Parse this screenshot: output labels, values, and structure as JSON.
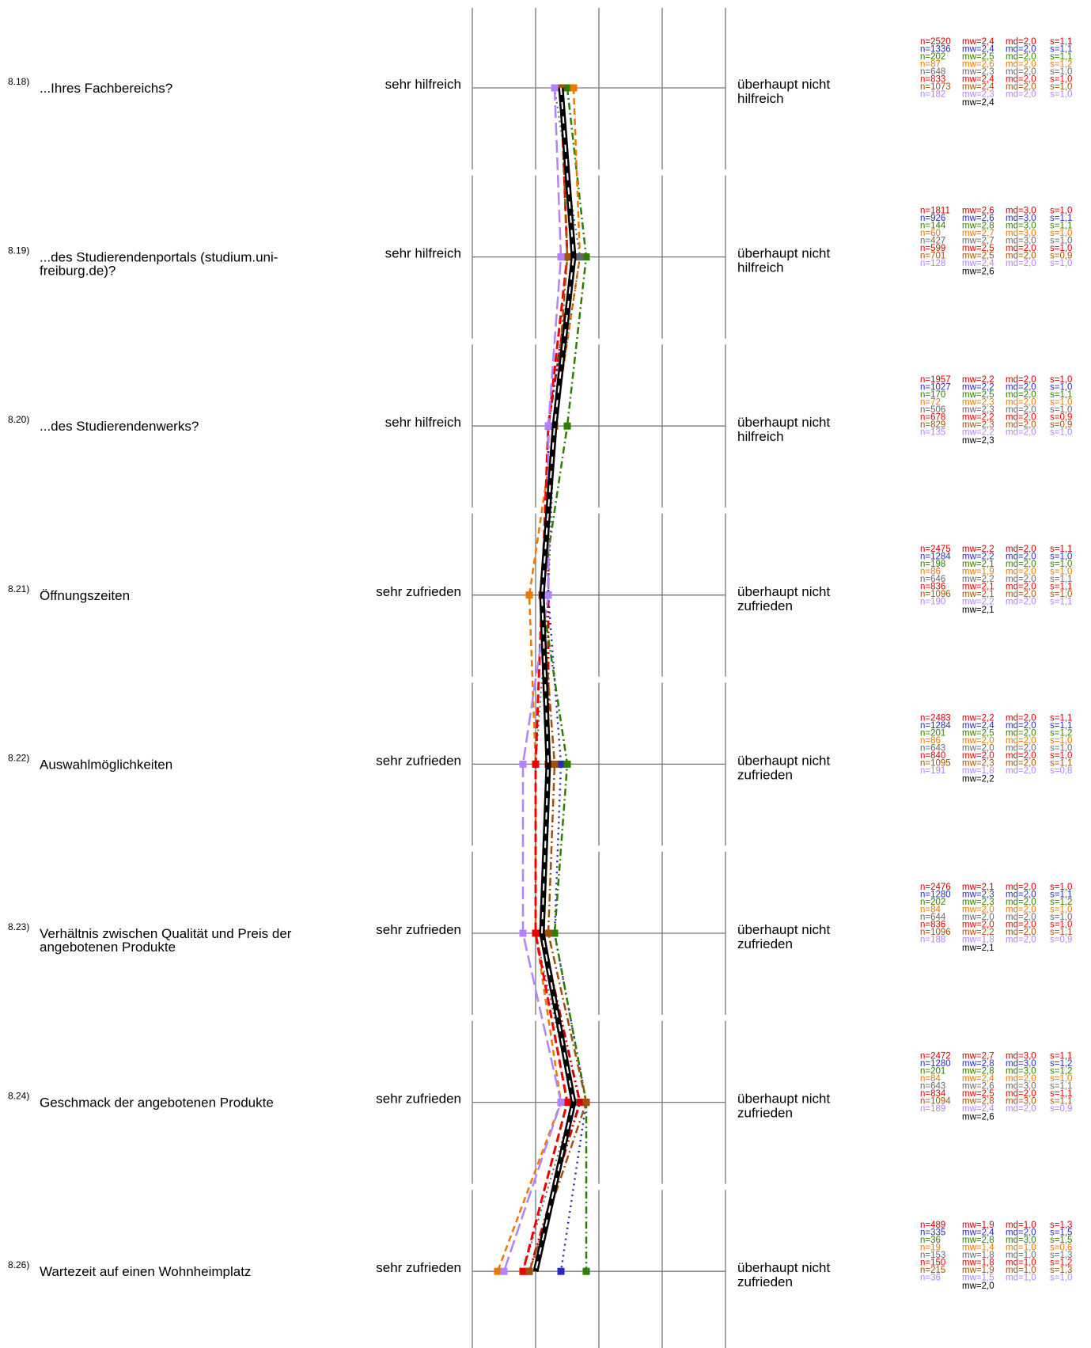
{
  "chart_data": {
    "type": "line",
    "scale": [
      1,
      2,
      3,
      4,
      5
    ],
    "items": [
      {
        "number": "8.18)",
        "label_lines": [
          "...Ihres Fachbereichs?"
        ],
        "left_pole": "sehr hilfreich",
        "right_pole_lines": [
          "überhaupt nicht",
          "hilfreich"
        ],
        "stats": [
          {
            "n": "n=2520",
            "mw": "mw=2,4",
            "md": "md=2,0",
            "s": "s=1,1"
          },
          {
            "n": "n=1336",
            "mw": "mw=2,4",
            "md": "md=2,0",
            "s": "s=1,1"
          },
          {
            "n": "n=202",
            "mw": "mw=2,5",
            "md": "md=2,0",
            "s": "s=1,1"
          },
          {
            "n": "n=87",
            "mw": "mw=2,6",
            "md": "md=2,0",
            "s": "s=1,2"
          },
          {
            "n": "n=648",
            "mw": "mw=2,3",
            "md": "md=2,0",
            "s": "s=1,0"
          },
          {
            "n": "n=833",
            "mw": "mw=2,4",
            "md": "md=2,0",
            "s": "s=1,0"
          },
          {
            "n": "n=1073",
            "mw": "mw=2,4",
            "md": "md=2,0",
            "s": "s=1,0"
          },
          {
            "n": "n=182",
            "mw": "mw=2,3",
            "md": "md=2,0",
            "s": "s=1,0"
          }
        ],
        "overall": "mw=2,4",
        "overall_value": 2.4
      },
      {
        "number": "8.19)",
        "label_lines": [
          "...des Studierendenportals (studium.uni-",
          "freiburg.de)?"
        ],
        "left_pole": "sehr hilfreich",
        "right_pole_lines": [
          "überhaupt nicht",
          "hilfreich"
        ],
        "stats": [
          {
            "n": "n=1811",
            "mw": "mw=2,6",
            "md": "md=3,0",
            "s": "s=1,0"
          },
          {
            "n": "n=926",
            "mw": "mw=2,6",
            "md": "md=3,0",
            "s": "s=1,1"
          },
          {
            "n": "n=144",
            "mw": "mw=2,8",
            "md": "md=3,0",
            "s": "s=1,1"
          },
          {
            "n": "n=60",
            "mw": "mw=2,7",
            "md": "md=3,0",
            "s": "s=1,0"
          },
          {
            "n": "n=427",
            "mw": "mw=2,7",
            "md": "md=3,0",
            "s": "s=1,0"
          },
          {
            "n": "n=599",
            "mw": "mw=2,5",
            "md": "md=2,0",
            "s": "s=1,0"
          },
          {
            "n": "n=701",
            "mw": "mw=2,5",
            "md": "md=2,0",
            "s": "s=0,9"
          },
          {
            "n": "n=128",
            "mw": "mw=2,4",
            "md": "md=2,0",
            "s": "s=1,0"
          }
        ],
        "overall": "mw=2,6",
        "overall_value": 2.6
      },
      {
        "number": "8.20)",
        "label_lines": [
          "...des Studierendenwerks?"
        ],
        "left_pole": "sehr hilfreich",
        "right_pole_lines": [
          "überhaupt nicht",
          "hilfreich"
        ],
        "stats": [
          {
            "n": "n=1957",
            "mw": "mw=2,2",
            "md": "md=2,0",
            "s": "s=1,0"
          },
          {
            "n": "n=1027",
            "mw": "mw=2,2",
            "md": "md=2,0",
            "s": "s=1,0"
          },
          {
            "n": "n=170",
            "mw": "mw=2,5",
            "md": "md=2,0",
            "s": "s=1,1"
          },
          {
            "n": "n=72",
            "mw": "mw=2,3",
            "md": "md=2,0",
            "s": "s=1,0"
          },
          {
            "n": "n=506",
            "mw": "mw=2,3",
            "md": "md=2,0",
            "s": "s=1,0"
          },
          {
            "n": "n=678",
            "mw": "mw=2,2",
            "md": "md=2,0",
            "s": "s=0,9"
          },
          {
            "n": "n=829",
            "mw": "mw=2,3",
            "md": "md=2,0",
            "s": "s=0,9"
          },
          {
            "n": "n=135",
            "mw": "mw=2,2",
            "md": "md=2,0",
            "s": "s=1,0"
          }
        ],
        "overall": "mw=2,3",
        "overall_value": 2.3
      },
      {
        "number": "8.21)",
        "label_lines": [
          "Öffnungszeiten"
        ],
        "left_pole": "sehr zufrieden",
        "right_pole_lines": [
          "überhaupt nicht",
          "zufrieden"
        ],
        "stats": [
          {
            "n": "n=2475",
            "mw": "mw=2,2",
            "md": "md=2,0",
            "s": "s=1,1"
          },
          {
            "n": "n=1284",
            "mw": "mw=2,2",
            "md": "md=2,0",
            "s": "s=1,0"
          },
          {
            "n": "n=198",
            "mw": "mw=2,1",
            "md": "md=2,0",
            "s": "s=1,0"
          },
          {
            "n": "n=86",
            "mw": "mw=1,9",
            "md": "md=2,0",
            "s": "s=1,0"
          },
          {
            "n": "n=646",
            "mw": "mw=2,2",
            "md": "md=2,0",
            "s": "s=1,1"
          },
          {
            "n": "n=836",
            "mw": "mw=2,1",
            "md": "md=2,0",
            "s": "s=1,1"
          },
          {
            "n": "n=1096",
            "mw": "mw=2,1",
            "md": "md=2,0",
            "s": "s=1,0"
          },
          {
            "n": "n=190",
            "mw": "mw=2,2",
            "md": "md=2,0",
            "s": "s=1,1"
          }
        ],
        "overall": "mw=2,1",
        "overall_value": 2.1
      },
      {
        "number": "8.22)",
        "label_lines": [
          "Auswahlmöglichkeiten"
        ],
        "left_pole": "sehr zufrieden",
        "right_pole_lines": [
          "überhaupt nicht",
          "zufrieden"
        ],
        "stats": [
          {
            "n": "n=2483",
            "mw": "mw=2,2",
            "md": "md=2,0",
            "s": "s=1,1"
          },
          {
            "n": "n=1284",
            "mw": "mw=2,4",
            "md": "md=2,0",
            "s": "s=1,1"
          },
          {
            "n": "n=201",
            "mw": "mw=2,5",
            "md": "md=2,0",
            "s": "s=1,2"
          },
          {
            "n": "n=86",
            "mw": "mw=2,0",
            "md": "md=2,0",
            "s": "s=1,0"
          },
          {
            "n": "n=643",
            "mw": "mw=2,0",
            "md": "md=2,0",
            "s": "s=1,0"
          },
          {
            "n": "n=840",
            "mw": "mw=2,0",
            "md": "md=2,0",
            "s": "s=1,0"
          },
          {
            "n": "n=1095",
            "mw": "mw=2,3",
            "md": "md=2,0",
            "s": "s=1,1"
          },
          {
            "n": "n=191",
            "mw": "mw=1,8",
            "md": "md=2,0",
            "s": "s=0,8"
          }
        ],
        "overall": "mw=2,2",
        "overall_value": 2.2
      },
      {
        "number": "8.23)",
        "label_lines": [
          "Verhältnis zwischen Qualität und Preis der",
          "angebotenen Produkte"
        ],
        "left_pole": "sehr zufrieden",
        "right_pole_lines": [
          "überhaupt nicht",
          "zufrieden"
        ],
        "stats": [
          {
            "n": "n=2476",
            "mw": "mw=2,1",
            "md": "md=2,0",
            "s": "s=1,0"
          },
          {
            "n": "n=1280",
            "mw": "mw=2,3",
            "md": "md=2,0",
            "s": "s=1,1"
          },
          {
            "n": "n=202",
            "mw": "mw=2,3",
            "md": "md=2,0",
            "s": "s=1,2"
          },
          {
            "n": "n=84",
            "mw": "mw=2,0",
            "md": "md=2,0",
            "s": "s=1,0"
          },
          {
            "n": "n=644",
            "mw": "mw=2,0",
            "md": "md=2,0",
            "s": "s=1,0"
          },
          {
            "n": "n=836",
            "mw": "mw=2,0",
            "md": "md=2,0",
            "s": "s=1,0"
          },
          {
            "n": "n=1096",
            "mw": "mw=2,2",
            "md": "md=2,0",
            "s": "s=1,1"
          },
          {
            "n": "n=188",
            "mw": "mw=1,8",
            "md": "md=2,0",
            "s": "s=0,9"
          }
        ],
        "overall": "mw=2,1",
        "overall_value": 2.1
      },
      {
        "number": "8.24)",
        "label_lines": [
          "Geschmack der angebotenen Produkte"
        ],
        "left_pole": "sehr zufrieden",
        "right_pole_lines": [
          "überhaupt nicht",
          "zufrieden"
        ],
        "stats": [
          {
            "n": "n=2472",
            "mw": "mw=2,7",
            "md": "md=3,0",
            "s": "s=1,1"
          },
          {
            "n": "n=1280",
            "mw": "mw=2,8",
            "md": "md=3,0",
            "s": "s=1,2"
          },
          {
            "n": "n=201",
            "mw": "mw=2,8",
            "md": "md=3,0",
            "s": "s=1,2"
          },
          {
            "n": "n=84",
            "mw": "mw=2,4",
            "md": "md=2,0",
            "s": "s=1,0"
          },
          {
            "n": "n=643",
            "mw": "mw=2,6",
            "md": "md=3,0",
            "s": "s=1,1"
          },
          {
            "n": "n=834",
            "mw": "mw=2,5",
            "md": "md=2,0",
            "s": "s=1,1"
          },
          {
            "n": "n=1094",
            "mw": "mw=2,8",
            "md": "md=3,0",
            "s": "s=1,1"
          },
          {
            "n": "n=189",
            "mw": "mw=2,4",
            "md": "md=2,0",
            "s": "s=0,9"
          }
        ],
        "overall": "mw=2,6",
        "overall_value": 2.6
      },
      {
        "number": "8.26)",
        "label_lines": [
          "Wartezeit auf einen Wohnheimplatz"
        ],
        "left_pole": "sehr zufrieden",
        "right_pole_lines": [
          "überhaupt nicht",
          "zufrieden"
        ],
        "stats": [
          {
            "n": "n=489",
            "mw": "mw=1,9",
            "md": "md=1,0",
            "s": "s=1,3"
          },
          {
            "n": "n=335",
            "mw": "mw=2,4",
            "md": "md=2,0",
            "s": "s=1,5"
          },
          {
            "n": "n=36",
            "mw": "mw=2,8",
            "md": "md=3,0",
            "s": "s=1,5"
          },
          {
            "n": "n=19",
            "mw": "mw=1,4",
            "md": "md=1,0",
            "s": "s=0,6"
          },
          {
            "n": "n=153",
            "mw": "mw=1,8",
            "md": "md=1,0",
            "s": "s=1,3"
          },
          {
            "n": "n=150",
            "mw": "mw=1,8",
            "md": "md=1,0",
            "s": "s=1,2"
          },
          {
            "n": "n=215",
            "mw": "mw=1,9",
            "md": "md=1,0",
            "s": "s=1,3"
          },
          {
            "n": "n=36",
            "mw": "mw=1,5",
            "md": "md=1,0",
            "s": "s=1,0"
          }
        ],
        "overall": "mw=2,0",
        "overall_value": 2.0
      }
    ],
    "series_styles": [
      {
        "color": "#cc0000",
        "dash": "10,4,2,4,2,4",
        "width": 3
      },
      {
        "color": "#2a2ab8",
        "dash": "2,5",
        "width": 2.5
      },
      {
        "color": "#2e7d00",
        "dash": "9,4,2,4",
        "width": 2.5
      },
      {
        "color": "#ee7700",
        "dash": "8,5",
        "width": 2.5
      },
      {
        "color": "#666666",
        "dash": "2,4",
        "width": 2
      },
      {
        "color": "#ee0000",
        "dash": "11,5",
        "width": 3
      },
      {
        "color": "#a0520a",
        "dash": "10,4,2,4",
        "width": 2.5
      },
      {
        "color": "#b283ff",
        "dash": "16,6",
        "width": 2.5
      }
    ],
    "overall_style": {
      "color": "#000000",
      "accent": "#ffffff"
    },
    "grid": true
  }
}
